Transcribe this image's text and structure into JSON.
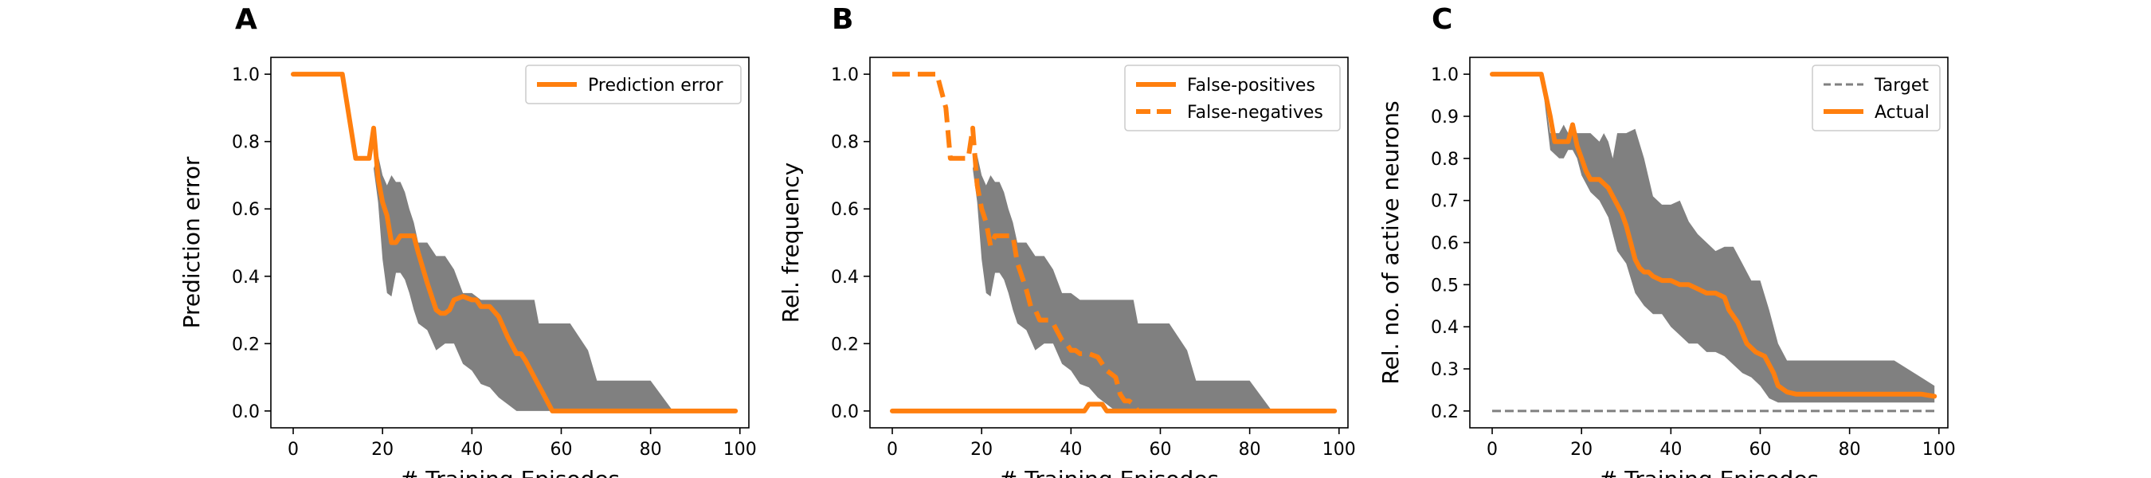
{
  "chart_data": [
    {
      "type": "line",
      "panel_label": "A",
      "xlabel": "# Training Episodes",
      "ylabel": "Prediction error",
      "xlim": [
        -5,
        102
      ],
      "ylim": [
        -0.05,
        1.05
      ],
      "xticks": [
        0,
        20,
        40,
        60,
        80,
        100
      ],
      "yticks": [
        0.0,
        0.2,
        0.4,
        0.6,
        0.8,
        1.0
      ],
      "grid": false,
      "legend_position": "top-right",
      "band": {
        "color": "#808080",
        "x": [
          18,
          19,
          20,
          21,
          22,
          23,
          24,
          25,
          26,
          27,
          28,
          30,
          32,
          34,
          36,
          38,
          40,
          42,
          44,
          46,
          48,
          50,
          52,
          54,
          55,
          57,
          58,
          62,
          66,
          68,
          70,
          74,
          80,
          85
        ],
        "lower": [
          0.72,
          0.62,
          0.45,
          0.35,
          0.34,
          0.41,
          0.41,
          0.39,
          0.35,
          0.3,
          0.26,
          0.24,
          0.18,
          0.2,
          0.2,
          0.14,
          0.12,
          0.08,
          0.07,
          0.04,
          0.02,
          0.0,
          0.0,
          0.0,
          0.0,
          0.0,
          0.0,
          0.0,
          0.0,
          0.0,
          0.0,
          0.0,
          0.0,
          0.0
        ],
        "upper": [
          0.72,
          0.76,
          0.7,
          0.67,
          0.7,
          0.68,
          0.68,
          0.65,
          0.6,
          0.56,
          0.5,
          0.5,
          0.46,
          0.46,
          0.42,
          0.35,
          0.35,
          0.33,
          0.33,
          0.33,
          0.33,
          0.33,
          0.33,
          0.33,
          0.26,
          0.26,
          0.26,
          0.26,
          0.18,
          0.09,
          0.09,
          0.09,
          0.09,
          0.0
        ]
      },
      "series": [
        {
          "name": "Prediction error",
          "color": "#ff7f0e",
          "dash": "solid",
          "x": [
            0,
            11,
            14,
            16,
            17,
            18,
            19,
            20,
            21,
            22,
            23,
            24,
            25,
            27,
            28,
            30,
            32,
            33,
            34,
            35,
            36,
            38,
            40,
            41,
            42,
            44,
            46,
            48,
            50,
            51,
            52,
            54,
            56,
            58,
            60,
            70,
            80,
            99
          ],
          "y": [
            1.0,
            1.0,
            0.75,
            0.75,
            0.75,
            0.84,
            0.69,
            0.62,
            0.58,
            0.5,
            0.5,
            0.52,
            0.52,
            0.52,
            0.47,
            0.38,
            0.3,
            0.29,
            0.29,
            0.3,
            0.33,
            0.34,
            0.33,
            0.33,
            0.31,
            0.31,
            0.28,
            0.22,
            0.17,
            0.17,
            0.15,
            0.1,
            0.05,
            0.0,
            0.0,
            0.0,
            0.0,
            0.0
          ]
        }
      ]
    },
    {
      "type": "line",
      "panel_label": "B",
      "xlabel": "# Training Episodes",
      "ylabel": "Rel. frequency",
      "xlim": [
        -5,
        102
      ],
      "ylim": [
        -0.05,
        1.05
      ],
      "xticks": [
        0,
        20,
        40,
        60,
        80,
        100
      ],
      "yticks": [
        0.0,
        0.2,
        0.4,
        0.6,
        0.8,
        1.0
      ],
      "grid": false,
      "legend_position": "top-right",
      "band": {
        "color": "#808080",
        "x": [
          18,
          19,
          20,
          21,
          22,
          23,
          24,
          25,
          26,
          27,
          28,
          30,
          32,
          34,
          36,
          38,
          40,
          42,
          44,
          46,
          48,
          50,
          52,
          54,
          55,
          57,
          58,
          62,
          66,
          68,
          70,
          74,
          80,
          85
        ],
        "lower": [
          0.72,
          0.62,
          0.45,
          0.35,
          0.34,
          0.41,
          0.41,
          0.39,
          0.35,
          0.3,
          0.26,
          0.24,
          0.18,
          0.2,
          0.2,
          0.14,
          0.12,
          0.08,
          0.07,
          0.04,
          0.02,
          0.0,
          0.0,
          0.0,
          0.0,
          0.0,
          0.0,
          0.0,
          0.0,
          0.0,
          0.0,
          0.0,
          0.0,
          0.0
        ],
        "upper": [
          0.72,
          0.76,
          0.7,
          0.67,
          0.7,
          0.68,
          0.68,
          0.65,
          0.6,
          0.56,
          0.5,
          0.5,
          0.46,
          0.46,
          0.42,
          0.35,
          0.35,
          0.33,
          0.33,
          0.33,
          0.33,
          0.33,
          0.33,
          0.33,
          0.26,
          0.26,
          0.26,
          0.26,
          0.18,
          0.09,
          0.09,
          0.09,
          0.09,
          0.0
        ]
      },
      "series": [
        {
          "name": "False-positives",
          "color": "#ff7f0e",
          "dash": "solid",
          "x": [
            0,
            10,
            20,
            30,
            40,
            43,
            44,
            47,
            48,
            50,
            60,
            70,
            80,
            90,
            99
          ],
          "y": [
            0.0,
            0.0,
            0.0,
            0.0,
            0.0,
            0.0,
            0.02,
            0.02,
            0.0,
            0.0,
            0.0,
            0.0,
            0.0,
            0.0,
            0.0
          ]
        },
        {
          "name": "False-negatives",
          "color": "#ff7f0e",
          "dash": "dashed",
          "x": [
            0,
            10,
            12,
            13,
            17,
            18,
            19,
            20,
            21,
            22,
            23,
            25,
            27,
            28,
            29,
            30,
            31,
            32,
            33,
            34,
            35,
            36,
            38,
            39,
            40,
            41,
            42,
            44,
            46,
            47,
            48,
            50,
            51,
            52,
            53,
            54,
            55
          ],
          "y": [
            1.0,
            1.0,
            0.9,
            0.75,
            0.75,
            0.84,
            0.67,
            0.6,
            0.56,
            0.49,
            0.52,
            0.52,
            0.52,
            0.44,
            0.4,
            0.36,
            0.31,
            0.3,
            0.27,
            0.27,
            0.27,
            0.26,
            0.21,
            0.2,
            0.18,
            0.18,
            0.17,
            0.17,
            0.16,
            0.14,
            0.12,
            0.1,
            0.05,
            0.03,
            0.03,
            0.02,
            0.0
          ]
        }
      ]
    },
    {
      "type": "line",
      "panel_label": "C",
      "xlabel": "# Training Episodes",
      "ylabel": "Rel. no. of active neurons",
      "xlim": [
        -5,
        102
      ],
      "ylim": [
        0.16,
        1.04
      ],
      "xticks": [
        0,
        20,
        40,
        60,
        80,
        100
      ],
      "yticks": [
        0.2,
        0.3,
        0.4,
        0.5,
        0.6,
        0.7,
        0.8,
        0.9,
        1.0
      ],
      "grid": false,
      "legend_position": "top-right",
      "band": {
        "color": "#808080",
        "x": [
          11,
          13,
          15,
          16,
          17,
          18,
          19,
          20,
          22,
          24,
          25,
          26,
          27,
          28,
          30,
          32,
          34,
          36,
          38,
          40,
          42,
          44,
          46,
          48,
          50,
          52,
          54,
          56,
          58,
          60,
          62,
          64,
          66,
          68,
          70,
          74,
          80,
          90,
          99
        ],
        "lower": [
          1.0,
          0.82,
          0.8,
          0.8,
          0.82,
          0.82,
          0.8,
          0.76,
          0.72,
          0.7,
          0.68,
          0.66,
          0.62,
          0.58,
          0.55,
          0.48,
          0.45,
          0.43,
          0.43,
          0.4,
          0.38,
          0.36,
          0.36,
          0.34,
          0.34,
          0.33,
          0.31,
          0.29,
          0.28,
          0.26,
          0.23,
          0.22,
          0.22,
          0.22,
          0.22,
          0.22,
          0.22,
          0.22,
          0.22
        ]
      },
      "band_upper": [
        1.0,
        0.86,
        0.86,
        0.88,
        0.86,
        0.88,
        0.86,
        0.86,
        0.86,
        0.84,
        0.86,
        0.84,
        0.8,
        0.86,
        0.86,
        0.87,
        0.8,
        0.71,
        0.69,
        0.69,
        0.7,
        0.65,
        0.62,
        0.6,
        0.58,
        0.59,
        0.59,
        0.55,
        0.51,
        0.51,
        0.44,
        0.36,
        0.32,
        0.32,
        0.32,
        0.32,
        0.32,
        0.32,
        0.26
      ],
      "series": [
        {
          "name": "Target",
          "color": "#808080",
          "dash": "dashed",
          "x": [
            0,
            99
          ],
          "y": [
            0.2,
            0.2
          ]
        },
        {
          "name": "Actual",
          "color": "#ff7f0e",
          "dash": "solid",
          "x": [
            0,
            11,
            12,
            13,
            14,
            16,
            17,
            18,
            19,
            20,
            21,
            22,
            23,
            24,
            25,
            26,
            27,
            28,
            29,
            30,
            31,
            32,
            33,
            34,
            35,
            36,
            38,
            40,
            42,
            44,
            46,
            48,
            50,
            52,
            53,
            55,
            57,
            59,
            61,
            62,
            63,
            64,
            66,
            68,
            70,
            80,
            90,
            96,
            99
          ],
          "y": [
            1.0,
            1.0,
            0.95,
            0.9,
            0.84,
            0.84,
            0.84,
            0.88,
            0.83,
            0.8,
            0.77,
            0.75,
            0.75,
            0.75,
            0.74,
            0.73,
            0.71,
            0.69,
            0.67,
            0.64,
            0.6,
            0.56,
            0.54,
            0.53,
            0.53,
            0.52,
            0.51,
            0.51,
            0.5,
            0.5,
            0.49,
            0.48,
            0.48,
            0.47,
            0.44,
            0.41,
            0.36,
            0.34,
            0.33,
            0.31,
            0.29,
            0.26,
            0.245,
            0.24,
            0.24,
            0.24,
            0.24,
            0.24,
            0.235
          ]
        }
      ]
    }
  ]
}
